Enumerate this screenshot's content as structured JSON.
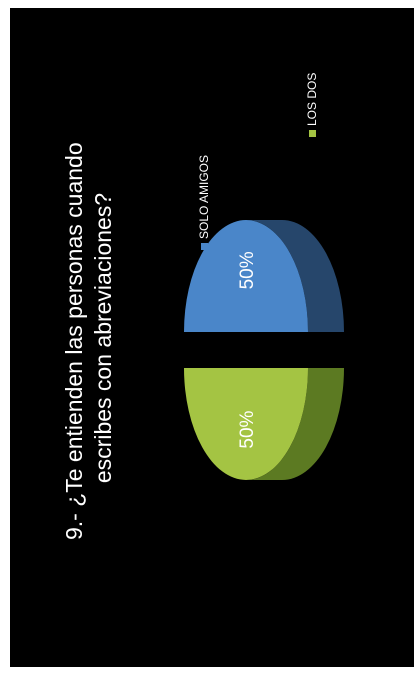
{
  "chart_data": {
    "type": "pie",
    "title": "9.- ¿Te entienden las personas cuando escribes con abreviaciones?",
    "title_lines": [
      "9.- ¿Te entienden las personas cuando",
      "escribes con abreviaciones?"
    ],
    "categories": [
      "SOLO AMIGOS",
      "LOS DOS"
    ],
    "values": [
      50,
      50
    ],
    "data_labels": [
      "50%",
      "50%"
    ],
    "colors": [
      "#4a86c9",
      "#a4c443"
    ],
    "side_colors": [
      "#26466b",
      "#5c7a22"
    ],
    "legend_position": "right",
    "three_d": true,
    "exploded": true,
    "rotated": true
  }
}
